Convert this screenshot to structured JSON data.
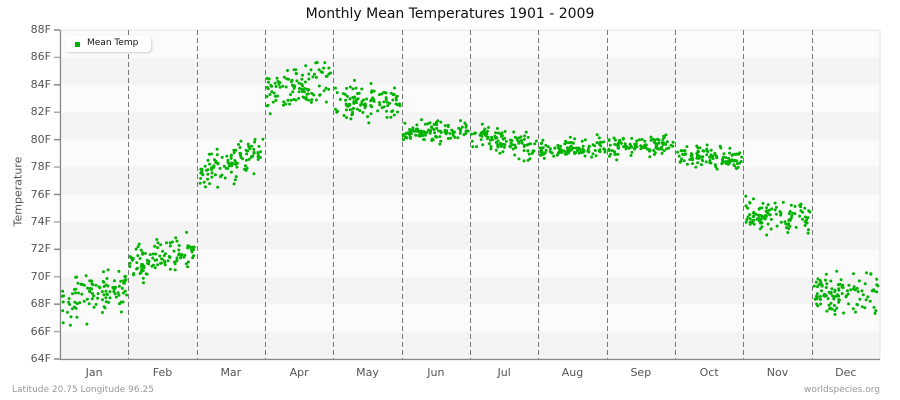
{
  "chart_data": {
    "type": "scatter",
    "title": "Monthly Mean Temperatures 1901 - 2009",
    "xlabel": "",
    "ylabel": "Temperature",
    "ylim": [
      64,
      88
    ],
    "yticks": [
      "64F",
      "66F",
      "68F",
      "70F",
      "72F",
      "74F",
      "76F",
      "78F",
      "80F",
      "82F",
      "84F",
      "86F",
      "88F"
    ],
    "categories": [
      "Jan",
      "Feb",
      "Mar",
      "Apr",
      "May",
      "Jun",
      "Jul",
      "Aug",
      "Sep",
      "Oct",
      "Nov",
      "Dec"
    ],
    "grid": {
      "horizontal_bands": true,
      "vertical_dashed_month_dividers": true
    },
    "legend": {
      "position": "top-left",
      "entries": [
        "Mean Temp"
      ]
    },
    "series": [
      {
        "name": "Mean Temp",
        "color": "#00b300",
        "points_per_month": 109,
        "month_stats": [
          {
            "month": "Jan",
            "start": 68.0,
            "end": 69.3,
            "spread": 1.3,
            "min": 65.0,
            "max": 71.5
          },
          {
            "month": "Feb",
            "start": 71.0,
            "end": 72.0,
            "spread": 1.1,
            "min": 69.0,
            "max": 74.2
          },
          {
            "month": "Mar",
            "start": 77.3,
            "end": 79.3,
            "spread": 1.0,
            "min": 73.6,
            "max": 81.8
          },
          {
            "month": "Apr",
            "start": 83.5,
            "end": 84.3,
            "spread": 1.3,
            "min": 81.0,
            "max": 87.7
          },
          {
            "month": "May",
            "start": 82.8,
            "end": 82.5,
            "spread": 1.2,
            "min": 78.6,
            "max": 86.6
          },
          {
            "month": "Jun",
            "start": 80.5,
            "end": 80.6,
            "spread": 0.6,
            "min": 79.4,
            "max": 82.7
          },
          {
            "month": "Jul",
            "start": 80.4,
            "end": 79.4,
            "spread": 0.7,
            "min": 78.3,
            "max": 82.4
          },
          {
            "month": "Aug",
            "start": 79.2,
            "end": 79.4,
            "spread": 0.6,
            "min": 77.8,
            "max": 80.8
          },
          {
            "month": "Sep",
            "start": 79.5,
            "end": 79.6,
            "spread": 0.6,
            "min": 78.2,
            "max": 81.4
          },
          {
            "month": "Oct",
            "start": 79.0,
            "end": 78.5,
            "spread": 0.7,
            "min": 76.7,
            "max": 81.2
          },
          {
            "month": "Nov",
            "start": 74.4,
            "end": 74.3,
            "spread": 1.0,
            "min": 69.9,
            "max": 77.0
          },
          {
            "month": "Dec",
            "start": 68.6,
            "end": 69.2,
            "spread": 1.3,
            "min": 65.3,
            "max": 72.2
          }
        ]
      }
    ]
  },
  "labels": {
    "title": "Monthly Mean Temperatures 1901 - 2009",
    "ylabel": "Temperature",
    "legend_entry": "Mean Temp",
    "footer_left": "Latitude 20.75 Longitude 96.25",
    "footer_right": "worldspecies.org"
  },
  "colors": {
    "point": "#00b300",
    "band_dark": "#f4f4f4",
    "band_light": "#fbfbfb",
    "divider": "#777777",
    "axis": "#888888"
  }
}
